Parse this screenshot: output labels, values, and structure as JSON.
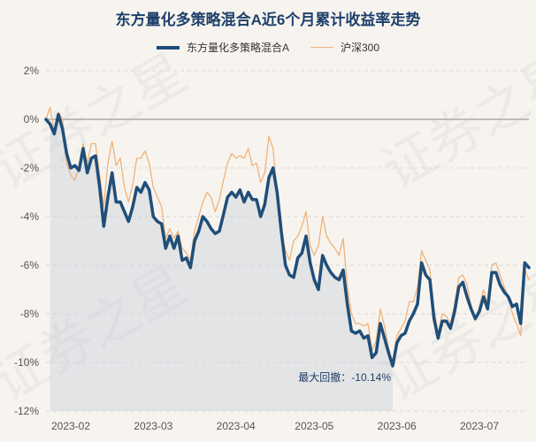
{
  "chart_data": {
    "type": "line",
    "title": "东方量化多策略混合A近6个月累计收益率走势",
    "xlabel": "",
    "ylabel": "",
    "ylim": [
      -12,
      2
    ],
    "y_ticks": [
      "2%",
      "0%",
      "-2%",
      "-4%",
      "-6%",
      "-8%",
      "-10%",
      "-12%"
    ],
    "y_tick_values": [
      2,
      0,
      -2,
      -4,
      -6,
      -8,
      -10,
      -12
    ],
    "x_ticks": [
      "2023-02",
      "2023-03",
      "2023-04",
      "2023-05",
      "2023-06",
      "2023-07"
    ],
    "x_tick_index": [
      6,
      26,
      46,
      65,
      85,
      105
    ],
    "series": [
      {
        "name": "东方量化多策略混合A",
        "color": "#1f4e79",
        "values": [
          0,
          -0.2,
          -0.6,
          0.2,
          -0.4,
          -1.4,
          -2.0,
          -1.9,
          -2.1,
          -1.2,
          -2.2,
          -1.6,
          -1.5,
          -2.8,
          -4.4,
          -3.2,
          -2.2,
          -3.4,
          -3.4,
          -3.8,
          -4.2,
          -3.6,
          -2.8,
          -3.0,
          -2.6,
          -2.9,
          -4.0,
          -4.2,
          -4.3,
          -5.3,
          -4.8,
          -5.3,
          -4.8,
          -5.8,
          -5.7,
          -6.1,
          -5.0,
          -4.6,
          -4.0,
          -4.2,
          -4.5,
          -4.7,
          -4.6,
          -3.9,
          -3.2,
          -3.0,
          -3.2,
          -2.9,
          -3.4,
          -3.0,
          -3.3,
          -3.3,
          -4.0,
          -3.5,
          -2.4,
          -2.0,
          -3.0,
          -4.6,
          -6.0,
          -6.4,
          -6.5,
          -5.7,
          -5.5,
          -4.8,
          -5.9,
          -6.6,
          -7.0,
          -5.6,
          -6.0,
          -6.3,
          -6.5,
          -6.6,
          -6.2,
          -7.6,
          -8.7,
          -8.8,
          -8.7,
          -9.0,
          -8.9,
          -9.8,
          -9.6,
          -8.4,
          -9.0,
          -9.6,
          -10.14,
          -9.2,
          -8.9,
          -8.8,
          -8.3,
          -8.0,
          -7.6,
          -5.9,
          -6.4,
          -6.6,
          -8.2,
          -9.0,
          -8.3,
          -8.3,
          -8.6,
          -7.9,
          -6.9,
          -6.7,
          -7.3,
          -7.8,
          -8.2,
          -7.9,
          -7.3,
          -7.8,
          -6.3,
          -6.3,
          -6.8,
          -7.1,
          -7.3,
          -7.7,
          -7.6,
          -8.4,
          -5.9,
          -6.1
        ]
      },
      {
        "name": "沪深300",
        "color": "#f0b27a",
        "values": [
          0,
          0.5,
          -0.5,
          0.3,
          0.0,
          -1.8,
          -2.3,
          -2.5,
          -2.0,
          -1.0,
          -1.8,
          -1.0,
          -1.0,
          -2.3,
          -3.6,
          -1.8,
          -0.9,
          -1.9,
          -1.6,
          -2.8,
          -3.4,
          -2.7,
          -1.6,
          -1.6,
          -1.3,
          -1.8,
          -2.8,
          -3.2,
          -3.6,
          -4.9,
          -4.5,
          -4.9,
          -4.6,
          -5.3,
          -5.5,
          -5.8,
          -4.6,
          -4.0,
          -3.4,
          -3.0,
          -3.2,
          -3.8,
          -3.3,
          -2.5,
          -1.8,
          -1.4,
          -1.6,
          -1.5,
          -1.6,
          -1.2,
          -1.9,
          -1.8,
          -2.6,
          -2.2,
          -0.7,
          -1.2,
          -3.0,
          -4.7,
          -5.4,
          -5.8,
          -5.0,
          -4.8,
          -4.4,
          -3.8,
          -5.2,
          -5.6,
          -5.2,
          -4.0,
          -4.8,
          -5.1,
          -5.3,
          -5.6,
          -4.9,
          -6.9,
          -8.0,
          -8.4,
          -8.4,
          -8.5,
          -8.4,
          -9.5,
          -9.1,
          -7.8,
          -8.5,
          -9.4,
          -10.0,
          -8.9,
          -8.6,
          -8.3,
          -7.5,
          -7.5,
          -6.9,
          -5.4,
          -5.8,
          -6.2,
          -7.8,
          -8.8,
          -8.0,
          -8.1,
          -8.4,
          -7.6,
          -6.5,
          -6.4,
          -6.8,
          -7.7,
          -8.3,
          -7.7,
          -7.0,
          -7.6,
          -6.0,
          -5.9,
          -6.4,
          -6.9,
          -7.3,
          -8.0,
          -8.4,
          -8.9,
          -6.2,
          -6.6
        ]
      }
    ],
    "annotation": {
      "label": "最大回撤：-10.14%",
      "drawdown_start_index": 1,
      "drawdown_end_index": 84
    },
    "watermark": "证券之星"
  }
}
